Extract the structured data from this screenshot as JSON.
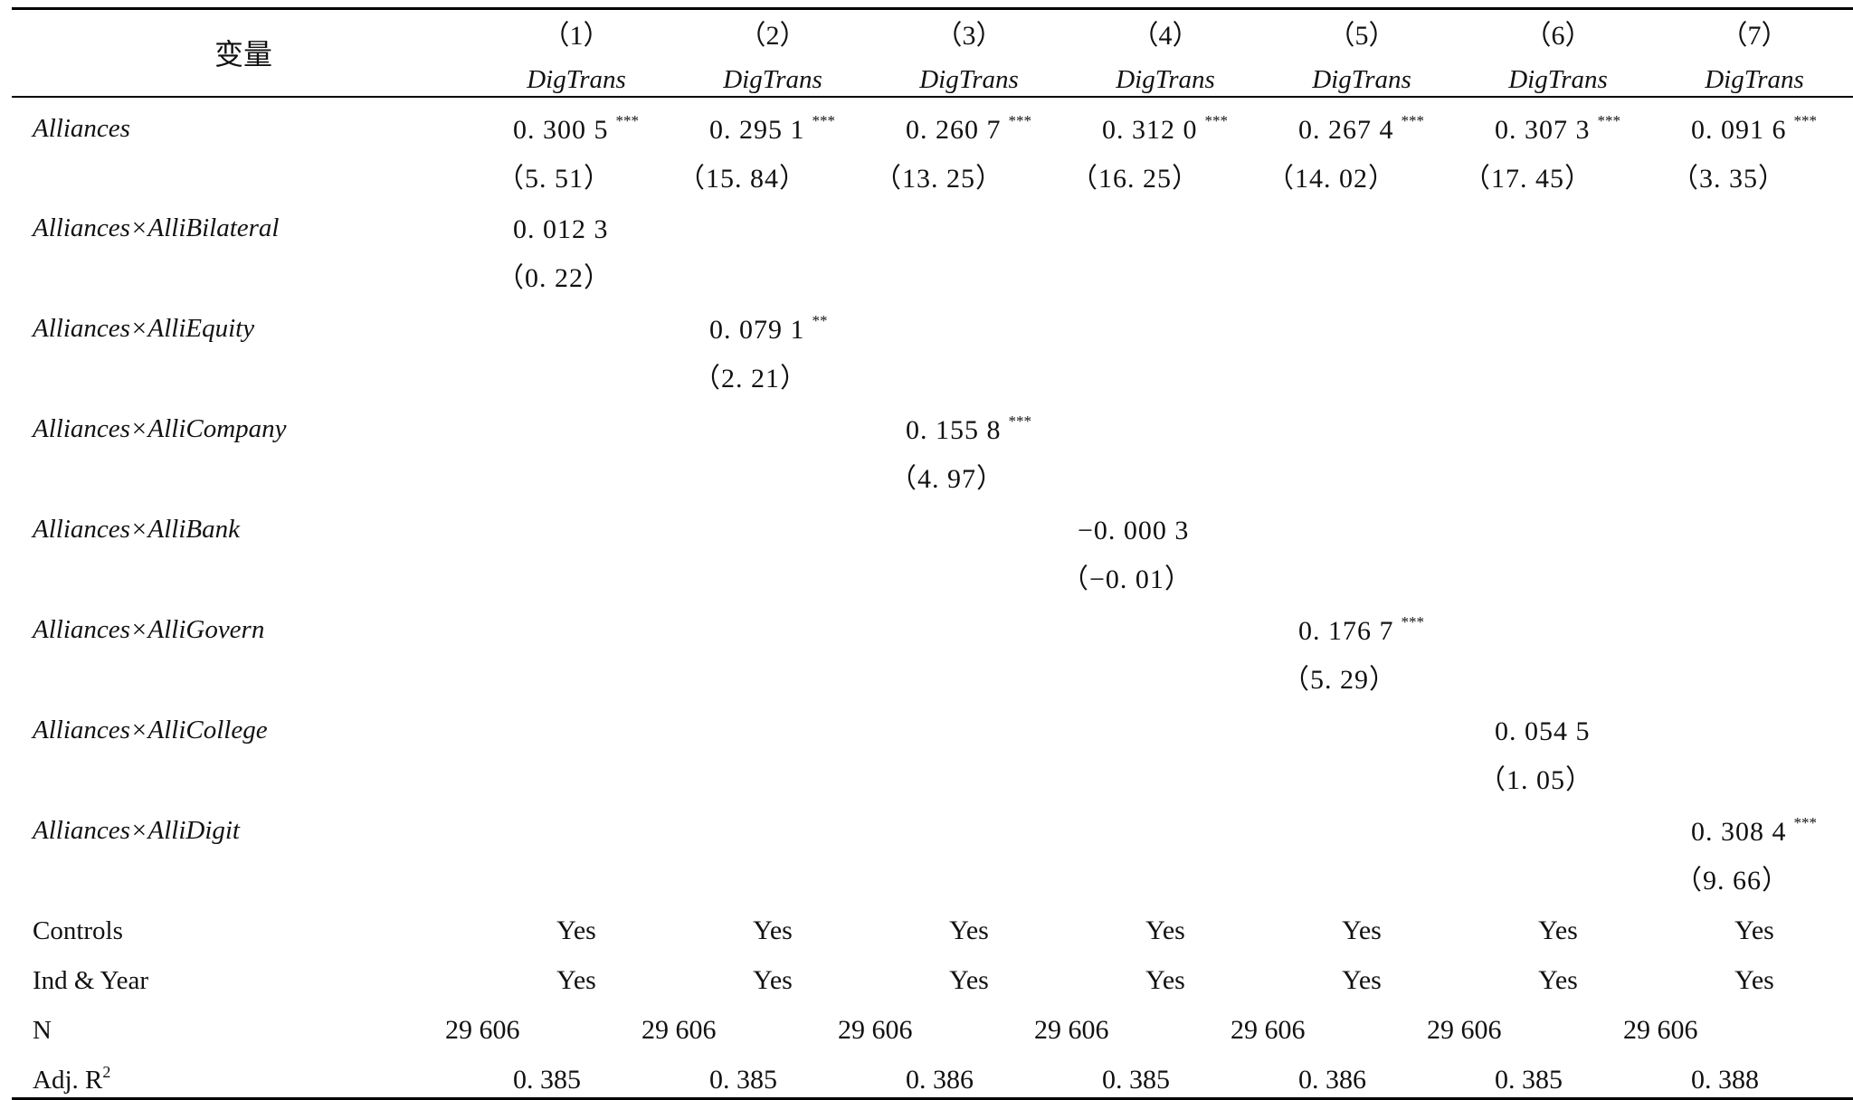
{
  "header": {
    "variable_label": "变量",
    "columns": [
      {
        "num": "（1）",
        "dep": "DigTrans"
      },
      {
        "num": "（2）",
        "dep": "DigTrans"
      },
      {
        "num": "（3）",
        "dep": "DigTrans"
      },
      {
        "num": "（4）",
        "dep": "DigTrans"
      },
      {
        "num": "（5）",
        "dep": "DigTrans"
      },
      {
        "num": "（6）",
        "dep": "DigTrans"
      },
      {
        "num": "（7）",
        "dep": "DigTrans"
      }
    ]
  },
  "rows": {
    "alliances": {
      "label": "Alliances",
      "coefs": [
        "0. 300 5",
        "0. 295 1",
        "0. 260 7",
        "0. 312 0",
        "0. 267 4",
        "0. 307 3",
        "0. 091 6"
      ],
      "stars": [
        "***",
        "***",
        "***",
        "***",
        "***",
        "***",
        "***"
      ],
      "tstats": [
        "（5. 51）",
        "（15. 84）",
        "（13. 25）",
        "（16. 25）",
        "（14. 02）",
        "（17. 45）",
        "（3. 35）"
      ]
    },
    "bilateral": {
      "label": "Alliances×AlliBilateral",
      "coef": "0. 012 3",
      "stars": "",
      "tstat": "（0. 22）"
    },
    "equity": {
      "label": "Alliances×AlliEquity",
      "coef": "0. 079 1",
      "stars": "**",
      "tstat": "（2. 21）"
    },
    "company": {
      "label": "Alliances×AlliCompany",
      "coef": "0. 155 8",
      "stars": "***",
      "tstat": "（4. 97）"
    },
    "bank": {
      "label": "Alliances×AlliBank",
      "coef": "−0. 000 3",
      "stars": "",
      "tstat": "（−0. 01）"
    },
    "govern": {
      "label": "Alliances×AlliGovern",
      "coef": "0. 176 7",
      "stars": "***",
      "tstat": "（5. 29）"
    },
    "college": {
      "label": "Alliances×AlliCollege",
      "coef": "0. 054 5",
      "stars": "",
      "tstat": "（1. 05）"
    },
    "digit": {
      "label": "Alliances×AlliDigit",
      "coef": "0. 308 4",
      "stars": "***",
      "tstat": "（9. 66）"
    },
    "controls": {
      "label": "Controls",
      "values": [
        "Yes",
        "Yes",
        "Yes",
        "Yes",
        "Yes",
        "Yes",
        "Yes"
      ]
    },
    "indyear": {
      "label": "Ind & Year",
      "values": [
        "Yes",
        "Yes",
        "Yes",
        "Yes",
        "Yes",
        "Yes",
        "Yes"
      ]
    },
    "n": {
      "label": "N",
      "values": [
        "29 606",
        "29 606",
        "29 606",
        "29 606",
        "29 606",
        "29 606",
        "29 606"
      ]
    },
    "adjr2": {
      "label": "Adj. R",
      "label_sup": "2",
      "values": [
        "0. 385",
        "0. 385",
        "0. 386",
        "0. 385",
        "0. 386",
        "0. 385",
        "0. 388"
      ]
    }
  }
}
